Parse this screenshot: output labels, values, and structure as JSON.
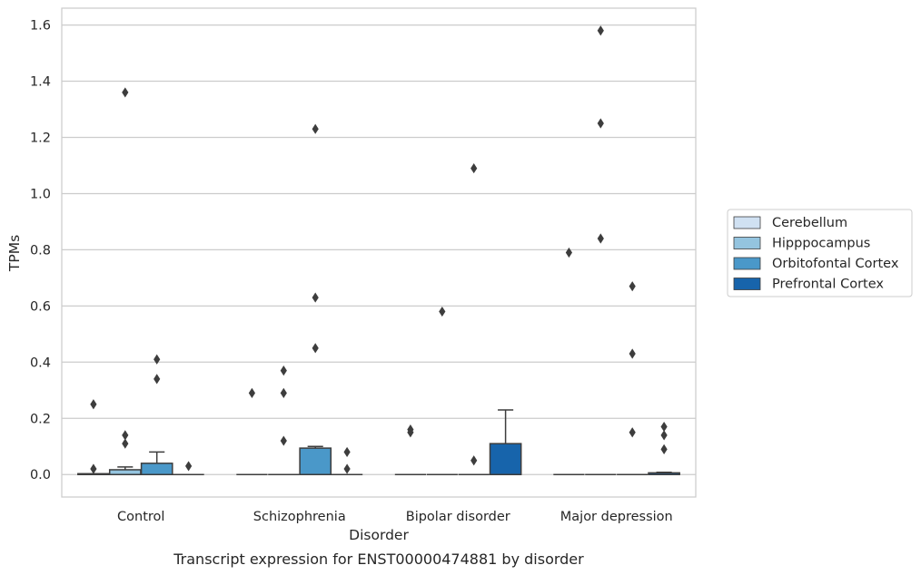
{
  "chart_data": {
    "type": "box",
    "caption": "Transcript expression for ENST00000474881 by disorder",
    "xlabel": "Disorder",
    "ylabel": "TPMs",
    "ylim": [
      -0.08,
      1.66
    ],
    "yticks": [
      "0.0",
      "0.2",
      "0.4",
      "0.6",
      "0.8",
      "1.0",
      "1.2",
      "1.4",
      "1.6"
    ],
    "categories": [
      "Control",
      "Schizophrenia",
      "Bipolar disorder",
      "Major depression"
    ],
    "grid": "horizontal",
    "legend_position": "right",
    "series": [
      {
        "name": "Cerebellum",
        "color": "#d0e1f2",
        "boxes": [
          {
            "q1": 0,
            "median": 0,
            "q3": 0.003,
            "whisker_low": 0,
            "whisker_high": 0.003,
            "outliers": [
              0.25,
              0.02
            ]
          },
          {
            "q1": 0,
            "median": 0,
            "q3": 0,
            "whisker_low": 0,
            "whisker_high": 0,
            "outliers": [
              0.29
            ]
          },
          {
            "q1": 0,
            "median": 0,
            "q3": 0,
            "whisker_low": 0,
            "whisker_high": 0,
            "outliers": [
              0.16,
              0.15
            ]
          },
          {
            "q1": 0,
            "median": 0,
            "q3": 0,
            "whisker_low": 0,
            "whisker_high": 0,
            "outliers": [
              0.79
            ]
          }
        ]
      },
      {
        "name": "Hipppocampus",
        "color": "#94c4df",
        "boxes": [
          {
            "q1": 0,
            "median": 0,
            "q3": 0.017,
            "whisker_low": 0,
            "whisker_high": 0.027,
            "outliers": [
              1.36,
              0.14,
              0.11
            ]
          },
          {
            "q1": 0,
            "median": 0,
            "q3": 0,
            "whisker_low": 0,
            "whisker_high": 0,
            "outliers": [
              0.37,
              0.29,
              0.12
            ]
          },
          {
            "q1": 0,
            "median": 0,
            "q3": 0,
            "whisker_low": 0,
            "whisker_high": 0,
            "outliers": [
              0.58
            ]
          },
          {
            "q1": 0,
            "median": 0,
            "q3": 0,
            "whisker_low": 0,
            "whisker_high": 0,
            "outliers": [
              1.58,
              1.25,
              0.84
            ]
          }
        ]
      },
      {
        "name": "Orbitofontal Cortex",
        "color": "#4a98c9",
        "boxes": [
          {
            "q1": 0,
            "median": 0,
            "q3": 0.04,
            "whisker_low": 0,
            "whisker_high": 0.08,
            "outliers": [
              0.41,
              0.34
            ]
          },
          {
            "q1": 0,
            "median": 0,
            "q3": 0.094,
            "whisker_low": 0,
            "whisker_high": 0.1,
            "outliers": [
              1.23,
              0.63,
              0.45
            ]
          },
          {
            "q1": 0,
            "median": 0,
            "q3": 0,
            "whisker_low": 0,
            "whisker_high": 0,
            "outliers": [
              1.09,
              0.05
            ]
          },
          {
            "q1": 0,
            "median": 0,
            "q3": 0,
            "whisker_low": 0,
            "whisker_high": 0,
            "outliers": [
              0.67,
              0.43,
              0.15
            ]
          }
        ]
      },
      {
        "name": "Prefrontal Cortex",
        "color": "#1764ab",
        "boxes": [
          {
            "q1": 0,
            "median": 0,
            "q3": 0,
            "whisker_low": 0,
            "whisker_high": 0,
            "outliers": [
              0.03
            ]
          },
          {
            "q1": 0,
            "median": 0,
            "q3": 0,
            "whisker_low": 0,
            "whisker_high": 0,
            "outliers": [
              0.08,
              0.02
            ]
          },
          {
            "q1": 0,
            "median": 0,
            "q3": 0.11,
            "whisker_low": 0,
            "whisker_high": 0.23,
            "outliers": []
          },
          {
            "q1": 0,
            "median": 0,
            "q3": 0.006,
            "whisker_low": 0,
            "whisker_high": 0.008,
            "outliers": [
              0.17,
              0.14,
              0.09
            ]
          }
        ]
      }
    ]
  }
}
